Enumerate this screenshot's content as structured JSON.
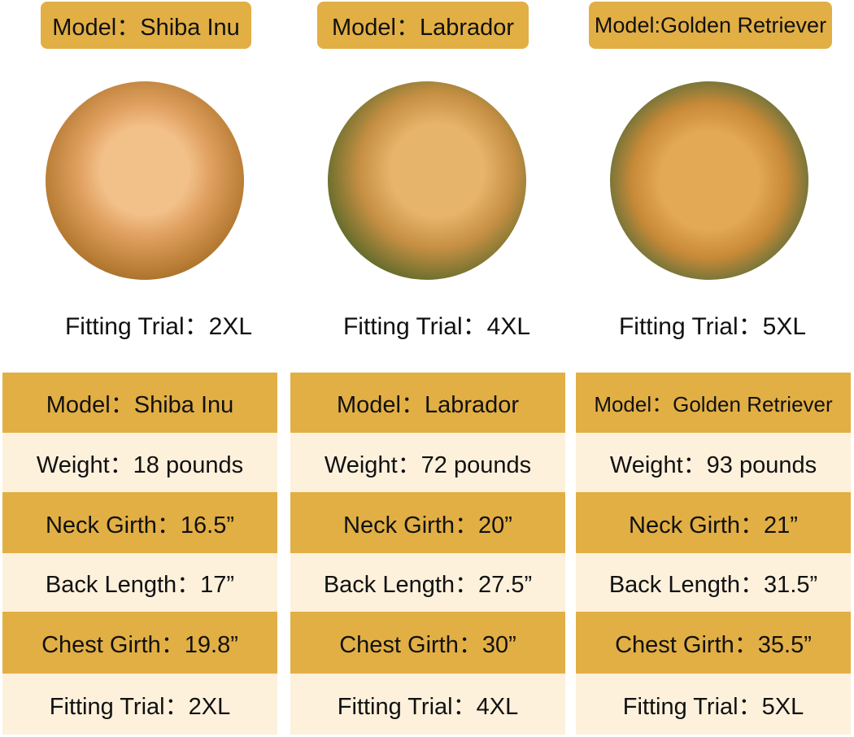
{
  "colors": {
    "gold": "#E2AF45",
    "cream": "#FDF1DC"
  },
  "dogs": [
    {
      "tag": "Model：Shiba Inu",
      "image": "shiba-inu-photo",
      "fit": "Fitting Trial：2XL",
      "rows": [
        "Model：Shiba Inu",
        "Weight：18 pounds",
        "Neck Girth：16.5”",
        "Back Length：17”",
        "Chest Girth：19.8”",
        "Fitting Trial：2XL"
      ]
    },
    {
      "tag": "Model：Labrador",
      "image": "labrador-photo",
      "fit": "Fitting Trial：4XL",
      "rows": [
        "Model：Labrador",
        "Weight：72 pounds",
        "Neck Girth：20”",
        "Back Length：27.5”",
        "Chest Girth：30”",
        "Fitting Trial：4XL"
      ]
    },
    {
      "tag": "Model:Golden Retriever",
      "image": "golden-retriever-photo",
      "fit": "Fitting Trial：5XL",
      "rows": [
        "Model：Golden Retriever",
        "Weight：93 pounds",
        "Neck Girth：21”",
        "Back Length：31.5”",
        "Chest Girth：35.5”",
        "Fitting Trial：5XL"
      ]
    }
  ]
}
